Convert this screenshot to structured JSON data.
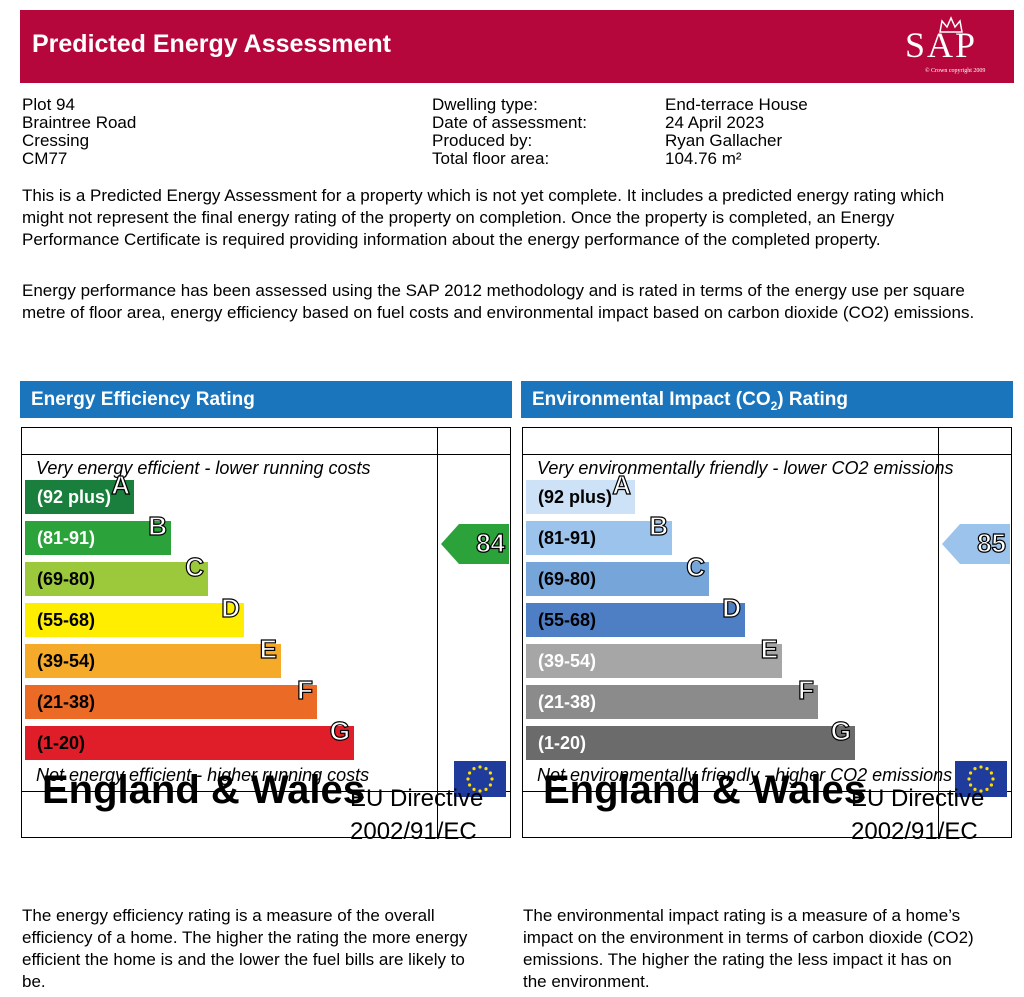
{
  "header": {
    "title": "Predicted Energy Assessment",
    "logo": "SAP",
    "logo_note": "© Crown copyright 2009"
  },
  "address": [
    "Plot 94",
    "Braintree Road",
    "Cressing",
    "CM77"
  ],
  "details": [
    {
      "label": "Dwelling type:",
      "value": "End-terrace House"
    },
    {
      "label": "Date of assessment:",
      "value": "24 April 2023"
    },
    {
      "label": "Produced by:",
      "value": "Ryan Gallacher"
    },
    {
      "label": "Total floor area:",
      "value": "104.76 m²"
    }
  ],
  "intro": [
    "This is a Predicted Energy Assessment for a property which is not yet complete. It includes a predicted energy rating which might not represent the final energy rating of the property on completion. Once the property is completed, an Energy Performance Certificate is required providing information about the energy performance of the completed property.",
    "Energy performance has been assessed using the SAP 2012 methodology and is rated in terms of the energy use per square metre of floor area, energy efficiency based on fuel costs and environmental impact based on carbon dioxide (CO2) emissions."
  ],
  "charts": [
    {
      "title_parts": [
        "Energy Efficiency Rating"
      ],
      "top_label": "Very energy efficient - lower running costs",
      "bottom_label": "Not energy efficient - higher running costs",
      "bands": [
        {
          "range": "(92 plus)",
          "letter": "A",
          "color": "#1a7f3c"
        },
        {
          "range": "(81-91)",
          "letter": "B",
          "color": "#2ba33a"
        },
        {
          "range": "(69-80)",
          "letter": "C",
          "color": "#9cc93c"
        },
        {
          "range": "(55-68)",
          "letter": "D",
          "color": "#ffee00"
        },
        {
          "range": "(39-54)",
          "letter": "E",
          "color": "#f5aa2a"
        },
        {
          "range": "(21-38)",
          "letter": "F",
          "color": "#eb6a25"
        },
        {
          "range": "(1-20)",
          "letter": "G",
          "color": "#e01e2a"
        }
      ],
      "rating": 84,
      "rating_color": "#2ba33a",
      "region": "England & Wales",
      "directive": "EU Directive",
      "directive_code": "2002/91/EC"
    },
    {
      "title_parts": [
        "Environmental Impact (CO",
        "2",
        ") Rating"
      ],
      "top_label": "Very environmentally friendly - lower CO2 emissions",
      "bottom_label": "Not environmentally friendly - higher CO2 emissions",
      "bands": [
        {
          "range": "(92 plus)",
          "letter": "A",
          "color": "#cde2f6"
        },
        {
          "range": "(81-91)",
          "letter": "B",
          "color": "#9cc3ec"
        },
        {
          "range": "(69-80)",
          "letter": "C",
          "color": "#76a5da"
        },
        {
          "range": "(55-68)",
          "letter": "D",
          "color": "#4e7ec4"
        },
        {
          "range": "(39-54)",
          "letter": "E",
          "color": "#a6a6a6"
        },
        {
          "range": "(21-38)",
          "letter": "F",
          "color": "#8b8b8b"
        },
        {
          "range": "(1-20)",
          "letter": "G",
          "color": "#6b6b6b"
        }
      ],
      "rating": 85,
      "rating_color": "#9cc3ec",
      "region": "England & Wales",
      "directive": "EU Directive",
      "directive_code": "2002/91/EC"
    }
  ],
  "footer": [
    "The energy efficiency rating is a measure of the overall efficiency of a home. The higher the rating the more energy efficient the home is and the lower the fuel bills are likely to be.",
    "The environmental impact rating is a measure of a home’s impact on the environment in terms of carbon dioxide (CO2) emissions. The higher the rating the less impact it has on the environment."
  ]
}
